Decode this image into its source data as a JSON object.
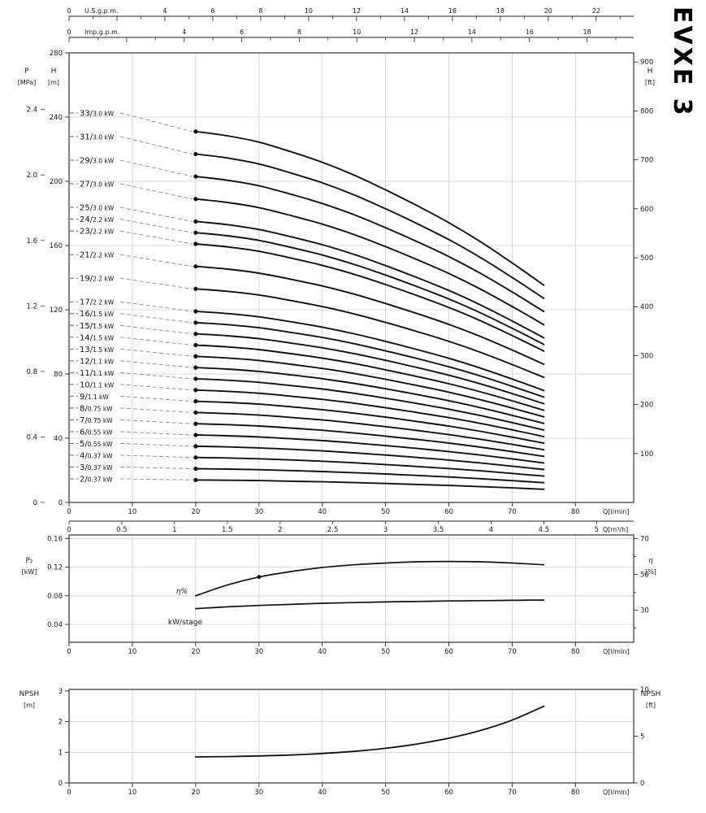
{
  "title": "EVXE 3",
  "labels": {
    "q_lmin": "Q[l/min]",
    "q_m3h": "Q[m³/h]",
    "us_gpm": "U.S.g.p.m.",
    "imp_gpm": "Imp.g.p.m."
  },
  "chart_data": [
    {
      "type": "line",
      "name": "head-flow-curves",
      "title": "EVXE 3",
      "x_axis": {
        "label": "Q[l/min]",
        "ticks": [
          0,
          10,
          20,
          30,
          40,
          50,
          60,
          70,
          80
        ],
        "range_lmin": [
          0,
          89.2
        ],
        "secondary_m3h": {
          "label": "Q[m³/h]",
          "ticks": [
            "0",
            "0.5",
            "1",
            "1.5",
            "2",
            "2.5",
            "3",
            "3.5",
            "4",
            "4.5",
            "5"
          ],
          "lmin_per_unit": 16.667
        },
        "top_us_gpm": {
          "label": "U.S.g.p.m.",
          "labeled_ticks": [
            0,
            4,
            6,
            8,
            10,
            12,
            14,
            16,
            18,
            20,
            22
          ],
          "max": 23,
          "lmin_per_unit": 3.785
        },
        "top_imp_gpm": {
          "label": "Imp.g.p.m.",
          "labeled_ticks": [
            0,
            4,
            6,
            8,
            10,
            12,
            14,
            16,
            18
          ],
          "max": 19,
          "lmin_per_unit": 4.546
        }
      },
      "y_axis": {
        "left_head_m": {
          "title": "H",
          "unit": "[m]",
          "ticks": [
            0,
            40,
            80,
            120,
            160,
            200,
            240,
            280
          ],
          "range": [
            0,
            280
          ]
        },
        "left_pressure_mpa": {
          "title": "P",
          "unit": "[MPa]",
          "ticks": [
            "0",
            "0.4",
            "0.8",
            "1.2",
            "1.6",
            "2.0",
            "2.4"
          ],
          "m_per_mpa": 101.97
        },
        "right_head_ft": {
          "title": "H",
          "unit": "[ft]",
          "ticks": [
            100,
            200,
            300,
            400,
            500,
            600,
            700,
            800,
            900
          ],
          "ft_per_m": 3.2808
        }
      },
      "q_lmin": [
        20,
        25,
        30,
        35,
        40,
        45,
        50,
        55,
        60,
        65,
        70,
        75
      ],
      "head_per_stage_m": [
        7.0,
        6.92,
        6.8,
        6.62,
        6.42,
        6.18,
        5.9,
        5.6,
        5.28,
        4.92,
        4.52,
        4.1
      ],
      "label_head_per_stage_m": 7.35,
      "curves": [
        {
          "stages": 33,
          "power_kw": "3.0"
        },
        {
          "stages": 31,
          "power_kw": "3.0"
        },
        {
          "stages": 29,
          "power_kw": "3.0"
        },
        {
          "stages": 27,
          "power_kw": "3.0"
        },
        {
          "stages": 25,
          "power_kw": "3.0"
        },
        {
          "stages": 24,
          "power_kw": "2.2"
        },
        {
          "stages": 23,
          "power_kw": "2.2"
        },
        {
          "stages": 21,
          "power_kw": "2.2"
        },
        {
          "stages": 19,
          "power_kw": "2.2"
        },
        {
          "stages": 17,
          "power_kw": "2.2"
        },
        {
          "stages": 16,
          "power_kw": "1.5"
        },
        {
          "stages": 15,
          "power_kw": "1.5"
        },
        {
          "stages": 14,
          "power_kw": "1.5"
        },
        {
          "stages": 13,
          "power_kw": "1.5"
        },
        {
          "stages": 12,
          "power_kw": "1.1"
        },
        {
          "stages": 11,
          "power_kw": "1.1"
        },
        {
          "stages": 10,
          "power_kw": "1.1"
        },
        {
          "stages": 9,
          "power_kw": "1.1"
        },
        {
          "stages": 8,
          "power_kw": "0.75"
        },
        {
          "stages": 7,
          "power_kw": "0.75"
        },
        {
          "stages": 6,
          "power_kw": "0.55"
        },
        {
          "stages": 5,
          "power_kw": "0.55"
        },
        {
          "stages": 4,
          "power_kw": "0.37"
        },
        {
          "stages": 3,
          "power_kw": "0.37"
        },
        {
          "stages": 2,
          "power_kw": "0.37"
        }
      ]
    },
    {
      "type": "line",
      "name": "power-and-efficiency",
      "x_ticks": [
        0,
        10,
        20,
        30,
        40,
        50,
        60,
        70,
        80
      ],
      "x_label": "Q[l/min]",
      "y_left": {
        "title": "P₂",
        "unit": "[kW]",
        "ticks": [
          "0.04",
          "0.08",
          "0.12",
          "0.16"
        ],
        "range": [
          0.015,
          0.165
        ]
      },
      "y_right": {
        "title": "η",
        "unit": "[%]",
        "ticks": [
          "30",
          "50",
          "70"
        ],
        "minor_ticks": [
          20,
          40,
          60
        ],
        "range": [
          12,
          72
        ]
      },
      "series": [
        {
          "name": "η%",
          "axis": "right",
          "q": [
            20,
            25,
            30,
            35,
            40,
            45,
            50,
            55,
            60,
            65,
            70,
            75
          ],
          "values": [
            38,
            44,
            48.5,
            51.5,
            53.8,
            55.3,
            56.3,
            57,
            57.2,
            57,
            56.3,
            55.3
          ],
          "marker_q": 30
        },
        {
          "name": "kW/stage",
          "axis": "left",
          "q": [
            20,
            25,
            30,
            35,
            40,
            45,
            50,
            55,
            60,
            65,
            70,
            75
          ],
          "values": [
            0.062,
            0.0645,
            0.0665,
            0.068,
            0.0695,
            0.0705,
            0.0714,
            0.0721,
            0.0727,
            0.0732,
            0.0736,
            0.074
          ]
        }
      ]
    },
    {
      "type": "line",
      "name": "npsh",
      "x_ticks": [
        0,
        10,
        20,
        30,
        40,
        50,
        60,
        70,
        80
      ],
      "x_label": "Q[l/min]",
      "y_left": {
        "title": "NPSH",
        "unit": "[m]",
        "ticks": [
          "0",
          "1",
          "2",
          "3"
        ],
        "range": [
          0,
          3.05
        ]
      },
      "y_right": {
        "title": "NPSH",
        "unit": "[ft]",
        "ticks": [
          "0",
          "5",
          "10"
        ],
        "ft_per_m": 3.2808
      },
      "series": [
        {
          "name": "NPSH",
          "q": [
            20,
            25,
            30,
            35,
            40,
            45,
            50,
            55,
            60,
            65,
            70,
            75
          ],
          "values": [
            0.85,
            0.86,
            0.88,
            0.91,
            0.96,
            1.03,
            1.13,
            1.27,
            1.46,
            1.71,
            2.05,
            2.5
          ]
        }
      ]
    }
  ]
}
